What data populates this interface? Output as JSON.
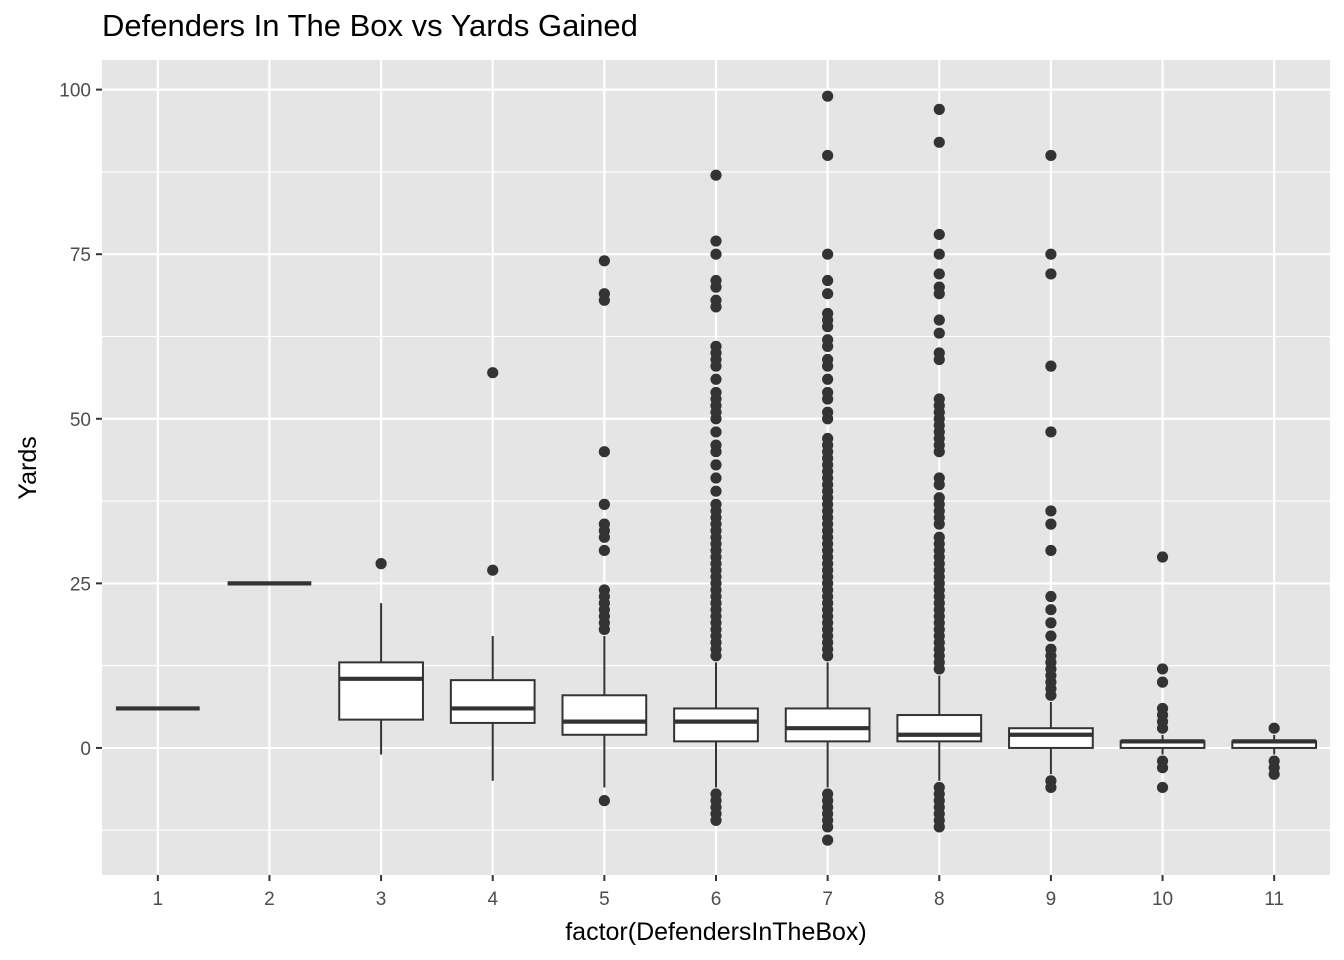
{
  "chart_data": {
    "type": "boxplot",
    "title": "Defenders In The Box vs Yards Gained",
    "xlabel": "factor(DefendersInTheBox)",
    "ylabel": "Yards",
    "categories": [
      "1",
      "2",
      "3",
      "4",
      "5",
      "6",
      "7",
      "8",
      "9",
      "10",
      "11"
    ],
    "ylim": [
      -19.3,
      104.5
    ],
    "yticks": [
      0,
      25,
      50,
      75,
      100
    ],
    "grid": true,
    "colors": {
      "panel": "#e5e5e5",
      "grid": "#ffffff",
      "box_fill": "#ffffff",
      "line": "#333333",
      "outlier": "#333333"
    },
    "boxes": [
      {
        "category": "1",
        "q1": 6,
        "median": 6,
        "q3": 6,
        "whisker_low": 6,
        "whisker_high": 6,
        "outliers": []
      },
      {
        "category": "2",
        "q1": 25,
        "median": 25,
        "q3": 25,
        "whisker_low": 25,
        "whisker_high": 25,
        "outliers": []
      },
      {
        "category": "3",
        "q1": 4.3,
        "median": 10.5,
        "q3": 13,
        "whisker_low": -1,
        "whisker_high": 22,
        "outliers": [
          28
        ]
      },
      {
        "category": "4",
        "q1": 3.8,
        "median": 6,
        "q3": 10.3,
        "whisker_low": -5,
        "whisker_high": 17,
        "outliers": [
          27,
          57
        ]
      },
      {
        "category": "5",
        "q1": 2,
        "median": 4,
        "q3": 8,
        "whisker_low": -6,
        "whisker_high": 17,
        "outliers": [
          -8,
          18,
          19,
          20,
          21,
          22,
          23,
          24,
          30,
          32,
          33,
          34,
          37,
          45,
          68,
          69,
          74
        ]
      },
      {
        "category": "6",
        "q1": 1,
        "median": 4,
        "q3": 6,
        "whisker_low": -6,
        "whisker_high": 13,
        "outliers": [
          -11,
          -10,
          -9,
          -8,
          -7,
          14,
          15,
          16,
          17,
          18,
          19,
          20,
          21,
          22,
          23,
          24,
          25,
          26,
          27,
          28,
          29,
          30,
          31,
          32,
          33,
          34,
          35,
          36,
          37,
          39,
          41,
          43,
          45,
          46,
          48,
          50,
          51,
          52,
          53,
          54,
          56,
          58,
          59,
          60,
          61,
          67,
          68,
          70,
          71,
          75,
          77,
          87
        ]
      },
      {
        "category": "7",
        "q1": 1,
        "median": 3,
        "q3": 6,
        "whisker_low": -6,
        "whisker_high": 13,
        "outliers": [
          -14,
          -12,
          -11,
          -10,
          -9,
          -8,
          -7,
          14,
          15,
          16,
          17,
          18,
          19,
          20,
          21,
          22,
          23,
          24,
          25,
          26,
          27,
          28,
          29,
          30,
          31,
          32,
          33,
          34,
          35,
          36,
          37,
          38,
          39,
          40,
          41,
          42,
          43,
          44,
          45,
          46,
          47,
          50,
          51,
          53,
          54,
          56,
          58,
          59,
          61,
          62,
          64,
          65,
          66,
          69,
          71,
          75,
          90,
          99
        ]
      },
      {
        "category": "8",
        "q1": 1,
        "median": 2,
        "q3": 5,
        "whisker_low": -5,
        "whisker_high": 11,
        "outliers": [
          -12,
          -11,
          -10,
          -9,
          -8,
          -7,
          -6,
          12,
          13,
          14,
          15,
          16,
          17,
          18,
          19,
          20,
          21,
          22,
          23,
          24,
          25,
          26,
          27,
          28,
          29,
          30,
          31,
          32,
          34,
          35,
          36,
          37,
          38,
          40,
          41,
          45,
          46,
          47,
          48,
          49,
          50,
          51,
          52,
          53,
          59,
          60,
          63,
          65,
          69,
          70,
          72,
          75,
          78,
          92,
          97
        ]
      },
      {
        "category": "9",
        "q1": 0,
        "median": 2,
        "q3": 3,
        "whisker_low": -4,
        "whisker_high": 7,
        "outliers": [
          -6,
          -5,
          8,
          9,
          10,
          11,
          12,
          13,
          14,
          15,
          17,
          19,
          21,
          23,
          30,
          34,
          36,
          48,
          58,
          72,
          75,
          90
        ]
      },
      {
        "category": "10",
        "q1": 0,
        "median": 1,
        "q3": 1,
        "whisker_low": -1,
        "whisker_high": 2,
        "outliers": [
          -6,
          -3,
          -2,
          3,
          4,
          5,
          6,
          10,
          12,
          29
        ]
      },
      {
        "category": "11",
        "q1": 0,
        "median": 1,
        "q3": 1,
        "whisker_low": -1,
        "whisker_high": 2,
        "outliers": [
          -4,
          -3,
          -2,
          3
        ]
      }
    ]
  }
}
